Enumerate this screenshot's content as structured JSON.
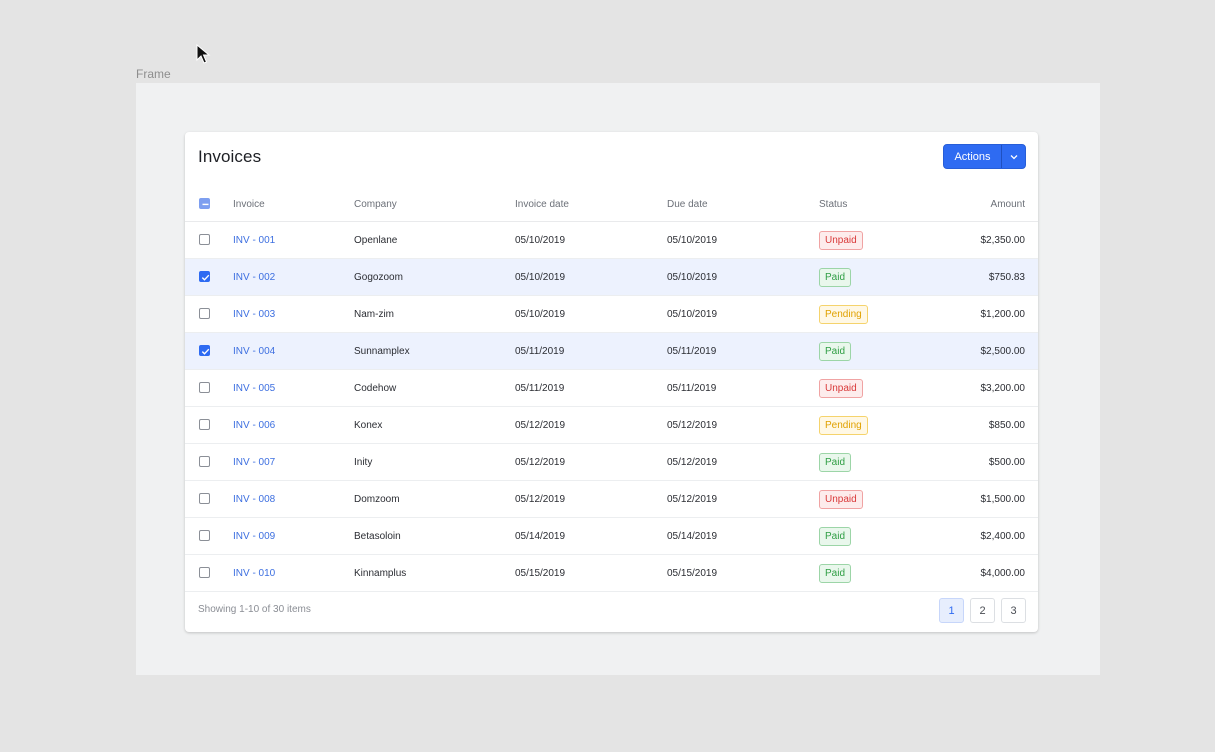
{
  "canvas": {
    "frame_label": "Frame"
  },
  "card": {
    "title": "Invoices",
    "actions_label": "Actions"
  },
  "table": {
    "columns": [
      "Invoice",
      "Company",
      "Invoice date",
      "Due date",
      "Status",
      "Amount"
    ],
    "rows": [
      {
        "invoice": "INV - 001",
        "company": "Openlane",
        "invoice_date": "05/10/2019",
        "due_date": "05/10/2019",
        "status": "Unpaid",
        "amount": "$2,350.00",
        "selected": false
      },
      {
        "invoice": "INV - 002",
        "company": "Gogozoom",
        "invoice_date": "05/10/2019",
        "due_date": "05/10/2019",
        "status": "Paid",
        "amount": "$750.83",
        "selected": true
      },
      {
        "invoice": "INV - 003",
        "company": "Nam-zim",
        "invoice_date": "05/10/2019",
        "due_date": "05/10/2019",
        "status": "Pending",
        "amount": "$1,200.00",
        "selected": false
      },
      {
        "invoice": "INV - 004",
        "company": "Sunnamplex",
        "invoice_date": "05/11/2019",
        "due_date": "05/11/2019",
        "status": "Paid",
        "amount": "$2,500.00",
        "selected": true
      },
      {
        "invoice": "INV - 005",
        "company": "Codehow",
        "invoice_date": "05/11/2019",
        "due_date": "05/11/2019",
        "status": "Unpaid",
        "amount": "$3,200.00",
        "selected": false
      },
      {
        "invoice": "INV - 006",
        "company": "Konex",
        "invoice_date": "05/12/2019",
        "due_date": "05/12/2019",
        "status": "Pending",
        "amount": "$850.00",
        "selected": false
      },
      {
        "invoice": "INV - 007",
        "company": "Inity",
        "invoice_date": "05/12/2019",
        "due_date": "05/12/2019",
        "status": "Paid",
        "amount": "$500.00",
        "selected": false
      },
      {
        "invoice": "INV - 008",
        "company": "Domzoom",
        "invoice_date": "05/12/2019",
        "due_date": "05/12/2019",
        "status": "Unpaid",
        "amount": "$1,500.00",
        "selected": false
      },
      {
        "invoice": "INV - 009",
        "company": "Betasoloin",
        "invoice_date": "05/14/2019",
        "due_date": "05/14/2019",
        "status": "Paid",
        "amount": "$2,400.00",
        "selected": false
      },
      {
        "invoice": "INV - 010",
        "company": "Kinnamplus",
        "invoice_date": "05/15/2019",
        "due_date": "05/15/2019",
        "status": "Paid",
        "amount": "$4,000.00",
        "selected": false
      }
    ]
  },
  "footer": {
    "showing_text": "Showing 1-10 of 30 items",
    "pages": [
      "1",
      "2",
      "3"
    ],
    "active_page": "1"
  },
  "colors": {
    "accent": "#2e6bf2",
    "paid": "#2f9e44",
    "unpaid": "#d93a3a",
    "pending": "#e0a100"
  },
  "icons": {
    "cursor": "mouse-pointer-icon",
    "actions_toggle": "chevron-down-icon",
    "header_checkbox": "indeterminate-checkbox-icon",
    "row_checkbox_checked": "checkmark-icon"
  }
}
